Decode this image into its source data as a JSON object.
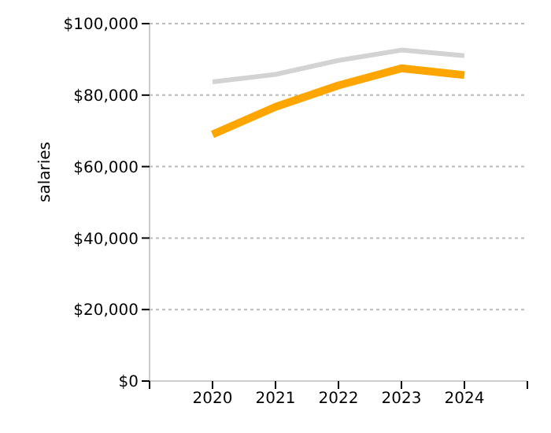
{
  "chart_data": {
    "type": "line",
    "ylabel": "salaries",
    "x": [
      2020,
      2021,
      2022,
      2023,
      2024
    ],
    "series": [
      {
        "color": "#d3d3d3",
        "values": [
          83700,
          85800,
          89700,
          92600,
          91000
        ]
      },
      {
        "color": "#ffa500",
        "values": [
          69000,
          76700,
          82700,
          87500,
          85600
        ]
      }
    ],
    "xlim": [
      2019,
      2025
    ],
    "xticks": [
      {
        "value": 2019,
        "label": null
      },
      2020,
      2021,
      2022,
      2023,
      2024,
      {
        "value": 2025,
        "label": null
      }
    ],
    "ylim": [
      0,
      100000
    ],
    "yticks": [
      {
        "value": 0,
        "label": "$0"
      },
      {
        "value": 20000,
        "label": "$20,000"
      },
      {
        "value": 40000,
        "label": "$40,000"
      },
      {
        "value": 60000,
        "label": "$60,000"
      },
      {
        "value": 80000,
        "label": "$80,000"
      },
      {
        "value": 100000,
        "label": "$100,000"
      }
    ],
    "grid": "y",
    "legend": false,
    "marker": "none",
    "line_style": "solid"
  }
}
